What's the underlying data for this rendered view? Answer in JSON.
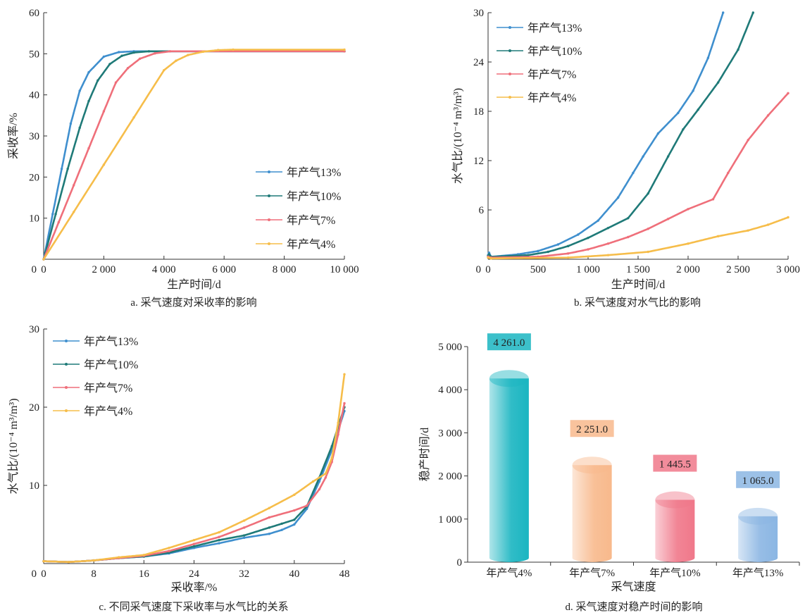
{
  "colors": {
    "c13": "#3f8fce",
    "c10": "#1f7a78",
    "c7": "#ef6f7a",
    "c4": "#f6bd4a",
    "axis": "#333333"
  },
  "chart_data": [
    {
      "id": "a",
      "type": "line",
      "caption": "a. 采气速度对采收率的影响",
      "xlabel": "生产时间/d",
      "ylabel": "采收率/%",
      "xlim": [
        0,
        10000
      ],
      "ylim": [
        0,
        60
      ],
      "xticks": [
        0,
        2000,
        4000,
        6000,
        8000,
        10000
      ],
      "xtick_labels": [
        "0",
        "2 000",
        "4 000",
        "6 000",
        "8 000",
        "10 000"
      ],
      "yticks": [
        10,
        20,
        30,
        40,
        50,
        60
      ],
      "legend_position": "right-middle",
      "series": [
        {
          "name": "年产气13%",
          "color": "#3f8fce",
          "x": [
            0,
            300,
            600,
            900,
            1200,
            1500,
            2000,
            2500,
            3000,
            10000
          ],
          "y": [
            0,
            11,
            22,
            33,
            41,
            45.5,
            49.3,
            50.4,
            50.6,
            50.6
          ]
        },
        {
          "name": "年产气10%",
          "color": "#1f7a78",
          "x": [
            0,
            400,
            800,
            1200,
            1500,
            1800,
            2200,
            2600,
            3000,
            3500,
            10000
          ],
          "y": [
            0,
            11,
            22,
            32,
            38.5,
            43.5,
            47.5,
            49.5,
            50.3,
            50.6,
            50.6
          ]
        },
        {
          "name": "年产气7%",
          "color": "#ef6f7a",
          "x": [
            0,
            500,
            1000,
            1500,
            2000,
            2400,
            2800,
            3200,
            3700,
            4200,
            10000
          ],
          "y": [
            0,
            9,
            18,
            27,
            36,
            43,
            46.5,
            48.8,
            50.1,
            50.6,
            50.6
          ]
        },
        {
          "name": "年产气4%",
          "color": "#f6bd4a",
          "x": [
            0,
            1000,
            2000,
            3000,
            4000,
            4400,
            4800,
            5300,
            5800,
            6300,
            10000
          ],
          "y": [
            0,
            11.5,
            23,
            34.5,
            46,
            48.3,
            49.7,
            50.5,
            50.9,
            51,
            51
          ]
        }
      ]
    },
    {
      "id": "b",
      "type": "line",
      "caption": "b. 采气速度对水气比的影响",
      "xlabel": "生产时间/d",
      "ylabel": "水气比/(10⁻⁴ m³/m³)",
      "xlim": [
        0,
        3000
      ],
      "ylim": [
        0,
        30
      ],
      "xticks": [
        0,
        500,
        1000,
        1500,
        2000,
        2500,
        3000
      ],
      "xtick_labels": [
        "0",
        "500",
        "1 000",
        "1 500",
        "2 000",
        "2 500",
        "3 000"
      ],
      "yticks": [
        6,
        12,
        18,
        24,
        30
      ],
      "legend_position": "top-left",
      "series": [
        {
          "name": "年产气13%",
          "color": "#3f8fce",
          "x": [
            0,
            10,
            30,
            300,
            500,
            700,
            900,
            1100,
            1300,
            1450,
            1550,
            1700,
            1900,
            2050,
            2200,
            2350
          ],
          "y": [
            0.5,
            0.8,
            0.3,
            0.6,
            1.0,
            1.8,
            3.0,
            4.7,
            7.5,
            10.5,
            12.5,
            15.3,
            17.8,
            20.5,
            24.5,
            30
          ]
        },
        {
          "name": "年产气10%",
          "color": "#1f7a78",
          "x": [
            0,
            10,
            30,
            400,
            600,
            800,
            1000,
            1200,
            1400,
            1600,
            1800,
            1950,
            2100,
            2300,
            2500,
            2650
          ],
          "y": [
            0.4,
            0.6,
            0.3,
            0.5,
            0.9,
            1.6,
            2.6,
            3.8,
            5.0,
            8.0,
            12.5,
            15.8,
            18.2,
            21.5,
            25.5,
            30
          ]
        },
        {
          "name": "年产气7%",
          "color": "#ef6f7a",
          "x": [
            0,
            30,
            500,
            800,
            1000,
            1200,
            1400,
            1600,
            1800,
            2000,
            2250,
            2400,
            2600,
            2800,
            3000
          ],
          "y": [
            0.3,
            0.2,
            0.3,
            0.7,
            1.2,
            1.9,
            2.7,
            3.7,
            4.9,
            6.1,
            7.3,
            10.5,
            14.5,
            17.5,
            20.2
          ]
        },
        {
          "name": "年产气4%",
          "color": "#f6bd4a",
          "x": [
            0,
            30,
            800,
            1200,
            1600,
            2000,
            2300,
            2600,
            2800,
            3000
          ],
          "y": [
            0.2,
            0.1,
            0.2,
            0.5,
            0.9,
            1.9,
            2.8,
            3.5,
            4.2,
            5.1
          ]
        }
      ]
    },
    {
      "id": "c",
      "type": "line",
      "caption": "c. 不同采气速度下采收率与水气比的关系",
      "xlabel": "采收率/%",
      "ylabel": "水气比/(10⁻⁴ m³/m³)",
      "xlim": [
        0,
        48
      ],
      "ylim": [
        0,
        30
      ],
      "xticks": [
        0,
        8,
        16,
        24,
        32,
        40,
        48
      ],
      "xtick_labels": [
        "0",
        "8",
        "16",
        "24",
        "32",
        "40",
        "48"
      ],
      "yticks": [
        10,
        20,
        30
      ],
      "legend_position": "top-left",
      "series": [
        {
          "name": "年产气13%",
          "color": "#3f8fce",
          "x": [
            0,
            4,
            8,
            12,
            16,
            20,
            24,
            28,
            32,
            36,
            38,
            40,
            42,
            44,
            46,
            48
          ],
          "y": [
            0.3,
            0.2,
            0.4,
            0.7,
            0.9,
            1.3,
            2.0,
            2.6,
            3.3,
            3.8,
            4.3,
            5.0,
            7.0,
            10.5,
            14.5,
            19.5
          ]
        },
        {
          "name": "年产气10%",
          "color": "#1f7a78",
          "x": [
            0,
            4,
            8,
            12,
            16,
            20,
            24,
            28,
            32,
            36,
            38,
            40,
            42,
            44,
            46,
            48
          ],
          "y": [
            0.3,
            0.2,
            0.4,
            0.7,
            0.9,
            1.4,
            2.2,
            3.0,
            3.6,
            4.6,
            5.1,
            5.6,
            7.3,
            11.0,
            15.0,
            20.0
          ]
        },
        {
          "name": "年产气7%",
          "color": "#ef6f7a",
          "x": [
            0,
            4,
            8,
            12,
            16,
            20,
            24,
            28,
            32,
            36,
            40,
            42,
            44,
            45,
            46,
            47,
            48
          ],
          "y": [
            0.3,
            0.2,
            0.4,
            0.7,
            1.0,
            1.6,
            2.5,
            3.4,
            4.6,
            5.9,
            6.8,
            7.4,
            9.5,
            11.0,
            13.0,
            16.5,
            20.5
          ]
        },
        {
          "name": "年产气4%",
          "color": "#f6bd4a",
          "x": [
            0,
            4,
            8,
            12,
            16,
            20,
            24,
            28,
            32,
            36,
            40,
            43,
            45,
            46,
            47,
            48
          ],
          "y": [
            0.3,
            0.2,
            0.4,
            0.8,
            1.1,
            2.0,
            3.0,
            4.0,
            5.5,
            7.1,
            8.8,
            10.5,
            11.5,
            13.5,
            18.0,
            24.2
          ]
        }
      ]
    },
    {
      "id": "d",
      "type": "bar",
      "caption": "d. 采气速度对稳产时间的影响",
      "xlabel": "采气速度",
      "ylabel": "稳产时间/d",
      "ylim": [
        0,
        5000
      ],
      "yticks": [
        0,
        1000,
        2000,
        3000,
        4000,
        5000
      ],
      "ytick_labels": [
        "0",
        "1 000",
        "2 000",
        "3 000",
        "4 000",
        "5 000"
      ],
      "categories": [
        "年产气4%",
        "年产气7%",
        "年产气10%",
        "年产气13%"
      ],
      "values": [
        4261.0,
        2251.0,
        1445.5,
        1065.0
      ],
      "data_labels": [
        "4 261.0",
        "2 251.0",
        "1 445.5",
        "1 065.0"
      ],
      "colors": [
        "#1ab5c1",
        "#f8b98c",
        "#f0788a",
        "#8bb6e3"
      ]
    }
  ]
}
